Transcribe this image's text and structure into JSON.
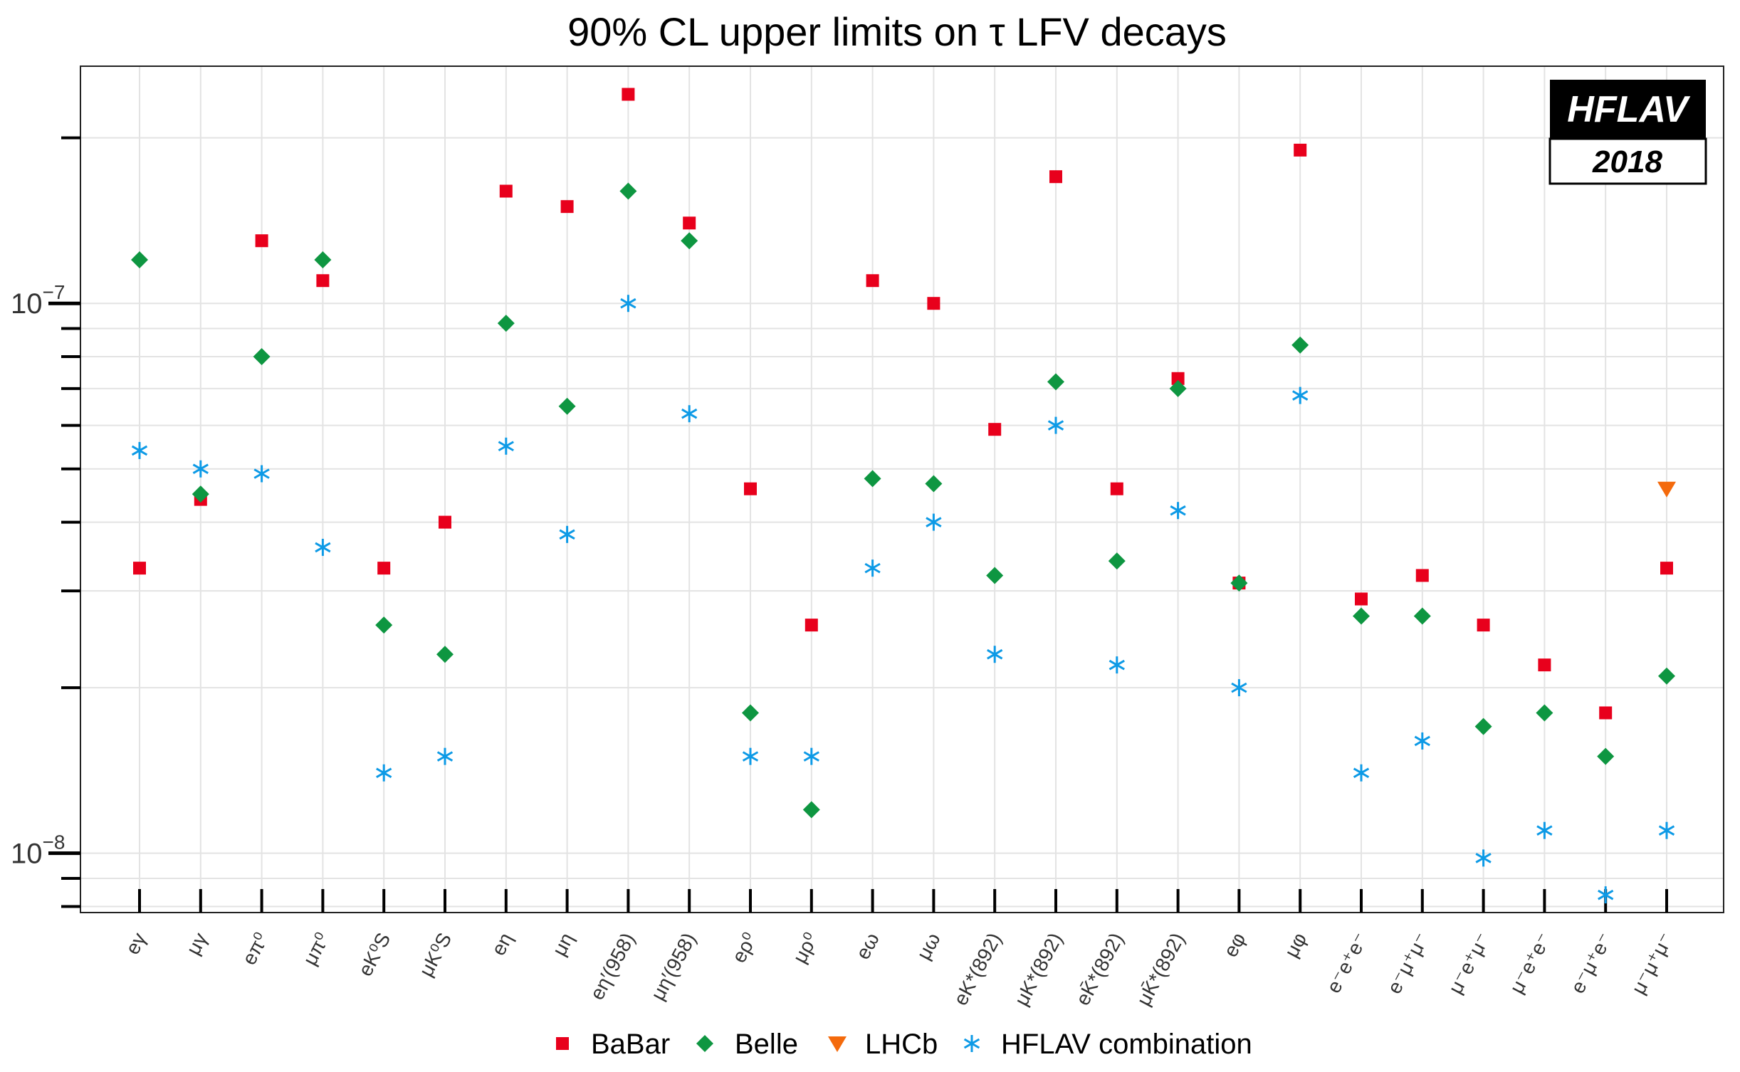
{
  "chart_data": {
    "type": "scatter",
    "title": "90% CL upper limits on τ LFV decays",
    "yscale": "log",
    "ylim": [
      7.8e-09,
      2.7e-07
    ],
    "ytick_labels": [
      {
        "value": 1e-07,
        "base": "10",
        "exp": "−7"
      },
      {
        "value": 1e-08,
        "base": "10",
        "exp": "−8"
      }
    ],
    "categories": [
      "eγ",
      "μγ",
      "eπ⁰",
      "μπ⁰",
      "eK⁰S",
      "μK⁰S",
      "eη",
      "μη",
      "eη′(958)",
      "μη′(958)",
      "eρ⁰",
      "μρ⁰",
      "eω",
      "μω",
      "eK*(892)",
      "μK*(892)",
      "eK̄*(892)",
      "μK̄*(892)",
      "eφ",
      "μφ",
      "e⁻e⁺e⁻",
      "e⁻μ⁺μ⁻",
      "μ⁻e⁺μ⁻",
      "μ⁻e⁺e⁻",
      "e⁻μ⁺e⁻",
      "μ⁻μ⁺μ⁻"
    ],
    "series": [
      {
        "name": "BaBar",
        "marker": "square",
        "color": "#e8001c",
        "values": [
          3.3e-08,
          4.4e-08,
          1.3e-07,
          1.1e-07,
          3.3e-08,
          4e-08,
          1.6e-07,
          1.5e-07,
          2.4e-07,
          1.4e-07,
          4.6e-08,
          2.6e-08,
          1.1e-07,
          1e-07,
          5.9e-08,
          1.7e-07,
          4.6e-08,
          7.3e-08,
          3.1e-08,
          1.9e-07,
          2.9e-08,
          3.2e-08,
          2.6e-08,
          2.2e-08,
          1.8e-08,
          3.3e-08
        ]
      },
      {
        "name": "Belle",
        "marker": "diamond",
        "color": "#0e9641",
        "values": [
          1.2e-07,
          4.5e-08,
          8e-08,
          1.2e-07,
          2.6e-08,
          2.3e-08,
          9.2e-08,
          6.5e-08,
          1.6e-07,
          1.3e-07,
          1.8e-08,
          1.2e-08,
          4.8e-08,
          4.7e-08,
          3.2e-08,
          7.2e-08,
          3.4e-08,
          7e-08,
          3.1e-08,
          8.4e-08,
          2.7e-08,
          2.7e-08,
          1.7e-08,
          1.8e-08,
          1.5e-08,
          2.1e-08
        ]
      },
      {
        "name": "LHCb",
        "marker": "triangle-down",
        "color": "#f46a0c",
        "values": [
          null,
          null,
          null,
          null,
          null,
          null,
          null,
          null,
          null,
          null,
          null,
          null,
          null,
          null,
          null,
          null,
          null,
          null,
          null,
          null,
          null,
          null,
          null,
          null,
          null,
          4.6e-08
        ]
      },
      {
        "name": "HFLAV combination",
        "marker": "asterisk",
        "color": "#0d9ae6",
        "values": [
          5.4e-08,
          5e-08,
          4.9e-08,
          3.6e-08,
          1.4e-08,
          1.5e-08,
          5.5e-08,
          3.8e-08,
          1e-07,
          6.3e-08,
          1.5e-08,
          1.5e-08,
          3.3e-08,
          4e-08,
          2.3e-08,
          6e-08,
          2.2e-08,
          4.2e-08,
          2e-08,
          6.8e-08,
          1.4e-08,
          1.6e-08,
          9.8e-09,
          1.1e-08,
          8.4e-09,
          1.1e-08
        ]
      }
    ],
    "grid": true,
    "legend_position": "bottom"
  },
  "logo": {
    "name": "HFLAV",
    "year": "2018"
  },
  "colors": {
    "babar": "#e8001c",
    "belle": "#0e9641",
    "lhcb": "#f46a0c",
    "hflav": "#0d9ae6"
  }
}
